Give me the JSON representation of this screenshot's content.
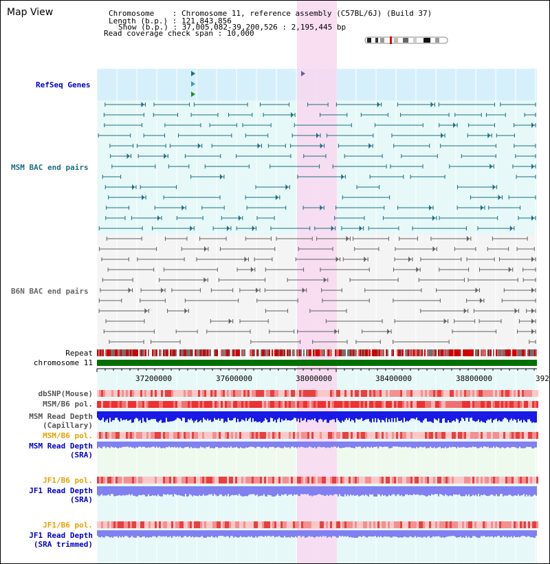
{
  "map_title": "Map View",
  "info": {
    "chromosome_key": "Chromosome",
    "chromosome_value": "Chromosome 11, reference assembly (C57BL/6J) (Build 37)",
    "length_key": "Length (b.p.)",
    "length_value": "121,843,856",
    "show_key": "Show (b.p.)",
    "show_value": "37,005,082-39,200,526 : 2,195,445 bp",
    "span_key": "Read coverage check span",
    "span_value": "10,000"
  },
  "tracks": {
    "refseq": "RefSeq Genes",
    "msm_bac": "MSM BAC end pairs",
    "b6n_bac": "B6N BAC end pairs",
    "repeat": "Repeat",
    "chromosome": "chromosome 11"
  },
  "axis": {
    "ticks": [
      "37200000",
      "37600000",
      "38000000",
      "38400000",
      "38800000",
      "392"
    ]
  },
  "lower_tracks": [
    {
      "id": "dbsnp",
      "label": "dbSNP(Mouse)",
      "color": "#555555"
    },
    {
      "id": "msm_pol1",
      "label": "MSM/B6 pol.",
      "color": "#555555"
    },
    {
      "id": "msm_depth_cap",
      "label": "MSM Read Depth\n(Capillary)",
      "color": "#555555"
    },
    {
      "id": "msm_pol2",
      "label": "MSM/B6 pol.",
      "color": "#e8a000"
    },
    {
      "id": "msm_depth_sra",
      "label": "MSM Read Depth\n(SRA)",
      "color": "#0000cc"
    },
    {
      "id": "jf1_pol1",
      "label": "JF1/B6 pol.",
      "color": "#e8a000"
    },
    {
      "id": "jf1_depth_sra",
      "label": "JF1 Read Depth\n(SRA)",
      "color": "#0000cc"
    },
    {
      "id": "jf1_pol2",
      "label": "JF1/B6 pol.",
      "color": "#e8a000"
    },
    {
      "id": "jf1_depth_trim",
      "label": "JF1 Read Depth\n(SRA trimmed)",
      "color": "#0000cc"
    }
  ],
  "colors": {
    "refseq_bg": "#d6f0fb",
    "msm_bg": "#e6f8f8",
    "b6n_bg": "#f4f4f4",
    "highlight": "#f8d8f0",
    "msm_feature": "#1b6e80",
    "b6n_feature": "#606060",
    "chromosome_bar": "#007000",
    "depth_capillary": "#1a1ae6",
    "depth_sra": "#8080f0",
    "refseq_label": "#0000cc",
    "msm_label": "#1b6e80",
    "b6n_label": "#666666"
  }
}
